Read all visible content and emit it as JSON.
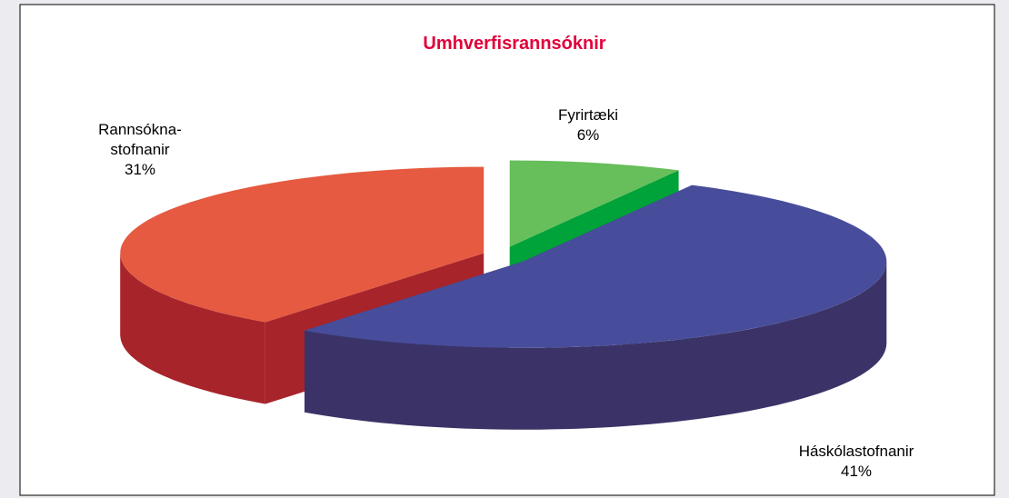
{
  "chart_data": {
    "type": "pie3d",
    "title": "Umhverfisrannsóknir",
    "categories": [
      "Fyrirtæki",
      "Háskólastofnanir",
      "Rannsókna-\nstofnanir"
    ],
    "values": [
      6,
      41,
      31
    ],
    "value_labels": [
      "6%",
      "41%",
      "31%"
    ],
    "colors": [
      "#66bf5a",
      "#474d9b",
      "#e55a40"
    ],
    "side_colors": [
      "#00a23a",
      "#3b3367",
      "#a8242b"
    ]
  }
}
